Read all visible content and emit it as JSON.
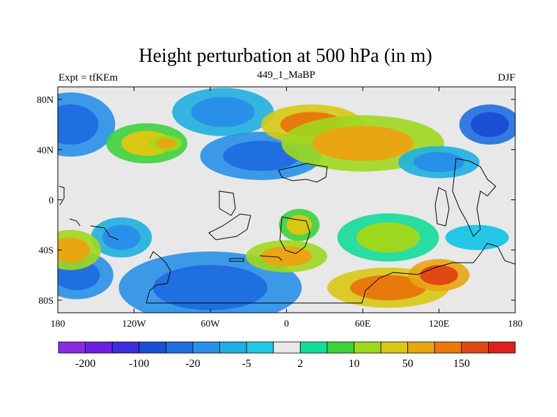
{
  "title": "Height perturbation at 500 hPa (in m)",
  "left_label": "Expt = tfKEm",
  "center_label": "449_1_MaBP",
  "right_label": "DJF",
  "chart_data": {
    "type": "heatmap",
    "variable": "Height perturbation at 500 hPa",
    "units": "m",
    "experiment": "tfKEm",
    "run": "449_1_MaBP",
    "season": "DJF",
    "x_ticks": [
      "180",
      "120W",
      "60W",
      "0",
      "60E",
      "120E",
      "180"
    ],
    "x_tick_values": [
      -180,
      -120,
      -60,
      0,
      60,
      120,
      180
    ],
    "y_ticks": [
      "80N",
      "40N",
      "0",
      "40S",
      "80S"
    ],
    "y_tick_values": [
      80,
      40,
      0,
      -40,
      -80
    ],
    "xlim": [
      -180,
      180
    ],
    "ylim": [
      -90,
      90
    ],
    "colorbar_levels": [
      -200,
      -150,
      -100,
      -50,
      -20,
      -10,
      -5,
      -2,
      2,
      5,
      10,
      20,
      50,
      100,
      150,
      200
    ],
    "colorbar_labels": [
      "-200",
      "-100",
      "-20",
      "-5",
      "2",
      "10",
      "50",
      "150"
    ],
    "colors": [
      "#8a2be2",
      "#6a22e0",
      "#3a2fd8",
      "#1c4fd8",
      "#1f6fe0",
      "#2890e8",
      "#1eb0e0",
      "#22c8e6",
      "#e8e8e8",
      "#12dc9a",
      "#3ed23c",
      "#9ed81e",
      "#d8c814",
      "#e8a612",
      "#e87a0c",
      "#e04a12",
      "#e0201c"
    ],
    "regions": [
      {
        "lon": -170,
        "lat": 60,
        "value": -50,
        "rx": 22,
        "ry": 16
      },
      {
        "lon": -165,
        "lat": -60,
        "value": -50,
        "rx": 18,
        "ry": 12
      },
      {
        "lon": -110,
        "lat": 45,
        "value": 20,
        "rx": 20,
        "ry": 10
      },
      {
        "lon": -95,
        "lat": 45,
        "value": 50,
        "rx": 8,
        "ry": 4
      },
      {
        "lon": -50,
        "lat": 70,
        "value": -20,
        "rx": 25,
        "ry": 12
      },
      {
        "lon": -20,
        "lat": 35,
        "value": -50,
        "rx": 30,
        "ry": 12
      },
      {
        "lon": 20,
        "lat": 60,
        "value": 100,
        "rx": 25,
        "ry": 10
      },
      {
        "lon": 60,
        "lat": 45,
        "value": 50,
        "rx": 40,
        "ry": 14
      },
      {
        "lon": 120,
        "lat": 30,
        "value": -20,
        "rx": 20,
        "ry": 8
      },
      {
        "lon": 160,
        "lat": 60,
        "value": -100,
        "rx": 15,
        "ry": 10
      },
      {
        "lon": 150,
        "lat": -30,
        "value": -5,
        "rx": 25,
        "ry": 10
      },
      {
        "lon": 80,
        "lat": -30,
        "value": 10,
        "rx": 25,
        "ry": 12
      },
      {
        "lon": -130,
        "lat": -30,
        "value": -20,
        "rx": 15,
        "ry": 10
      },
      {
        "lon": -60,
        "lat": -70,
        "value": -50,
        "rx": 45,
        "ry": 18
      },
      {
        "lon": 80,
        "lat": -70,
        "value": 100,
        "rx": 30,
        "ry": 10
      },
      {
        "lon": 120,
        "lat": -60,
        "value": 150,
        "rx": 15,
        "ry": 8
      },
      {
        "lon": -170,
        "lat": -40,
        "value": 50,
        "rx": 15,
        "ry": 10
      },
      {
        "lon": 10,
        "lat": -20,
        "value": 20,
        "rx": 10,
        "ry": 8
      },
      {
        "lon": 0,
        "lat": -45,
        "value": 50,
        "rx": 20,
        "ry": 8
      }
    ]
  }
}
